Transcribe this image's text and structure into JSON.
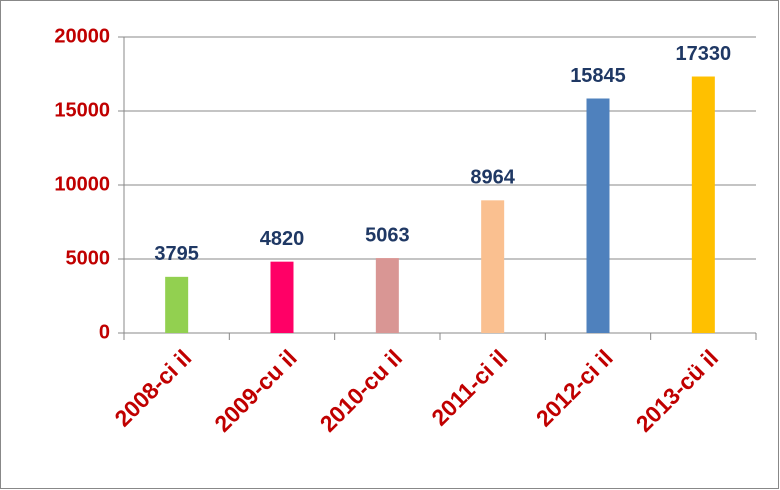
{
  "chart_data": {
    "type": "bar",
    "categories": [
      "2008-ci il",
      "2009-cu il",
      "2010-cu il",
      "2011-ci il",
      "2012-ci il",
      "2013-cü il"
    ],
    "values": [
      3795,
      4820,
      5063,
      8964,
      15845,
      17330
    ],
    "colors": [
      "#92d050",
      "#ff0066",
      "#d99694",
      "#fac090",
      "#4f81bd",
      "#ffc000"
    ],
    "ylim": [
      0,
      20000
    ],
    "yticks": [
      0,
      5000,
      10000,
      15000,
      20000
    ],
    "grid": true
  }
}
